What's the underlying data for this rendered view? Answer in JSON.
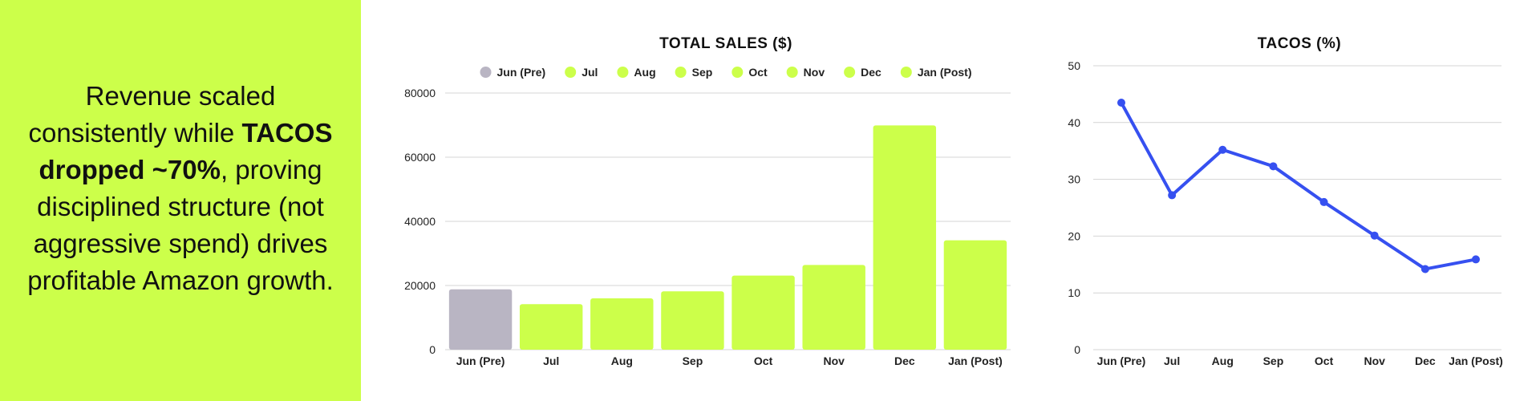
{
  "headline": {
    "part1": "Revenue scaled consistently while ",
    "bold": "TACOS dropped ~70%",
    "part2": ", proving disciplined structure (not aggressive spend) drives profitable Amazon growth."
  },
  "colors": {
    "panel_bg": "#ccff4a",
    "bar_accent": "#ccff4a",
    "bar_pre": "#b9b5c3",
    "line": "#3650f0"
  },
  "chart_data": [
    {
      "type": "bar",
      "title": "TOTAL SALES ($)",
      "categories": [
        "Jun (Pre)",
        "Jul",
        "Aug",
        "Sep",
        "Oct",
        "Nov",
        "Dec",
        "Jan (Post)"
      ],
      "values": [
        18800,
        14200,
        16000,
        18200,
        23100,
        26400,
        69900,
        34100
      ],
      "bar_colors": [
        "#b9b5c3",
        "#ccff4a",
        "#ccff4a",
        "#ccff4a",
        "#ccff4a",
        "#ccff4a",
        "#ccff4a",
        "#ccff4a"
      ],
      "legend": [
        "Jun (Pre)",
        "Jul",
        "Aug",
        "Sep",
        "Oct",
        "Nov",
        "Dec",
        "Jan (Post)"
      ],
      "legend_position": "top",
      "yticks": [
        0,
        20000,
        40000,
        60000,
        80000
      ],
      "ylim": [
        0,
        80000
      ],
      "grid": true
    },
    {
      "type": "line",
      "title": "TACOS (%)",
      "categories": [
        "Jun (Pre)",
        "Jul",
        "Aug",
        "Sep",
        "Oct",
        "Nov",
        "Dec",
        "Jan (Post)"
      ],
      "values": [
        43.5,
        27.2,
        35.2,
        32.3,
        26.0,
        20.1,
        14.2,
        15.9
      ],
      "yticks": [
        0,
        10,
        20,
        30,
        40,
        50
      ],
      "ylim": [
        0,
        50
      ],
      "grid": true
    }
  ]
}
